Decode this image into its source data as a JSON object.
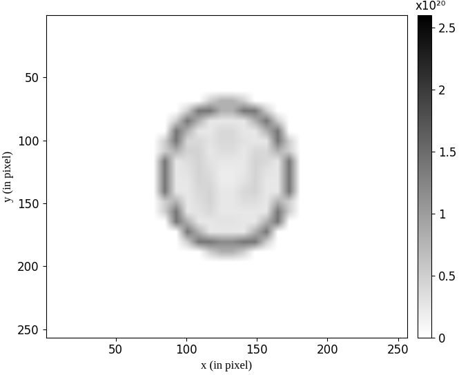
{
  "chart_data": {
    "type": "heatmap",
    "xlabel": "x (in pixel)",
    "ylabel": "y (in pixel)",
    "xlim": [
      0.5,
      256.5
    ],
    "ylim": [
      256.5,
      0.5
    ],
    "xticks": [
      50,
      100,
      150,
      200,
      250
    ],
    "yticks": [
      50,
      100,
      150,
      200,
      250
    ],
    "colorbar_range": [
      0,
      2.6
    ],
    "colorbar_ticks": [
      0,
      0.5,
      1,
      1.5,
      2,
      2.5
    ],
    "colorbar_label": "x10²⁰",
    "cells": [
      [
        0,
        0,
        0,
        0,
        0,
        0,
        0,
        0,
        0,
        0,
        0,
        0,
        0,
        0,
        0,
        0,
        0,
        0,
        0,
        0,
        0,
        0,
        0,
        0,
        0,
        0,
        0,
        0,
        0,
        0,
        0,
        0
      ],
      [
        0,
        0,
        0,
        0,
        0,
        0,
        0,
        0,
        0,
        0,
        0,
        0,
        0,
        0,
        0,
        0,
        0,
        0,
        0,
        0,
        0,
        0,
        0,
        0,
        0,
        0,
        0,
        0,
        0,
        0,
        0,
        0
      ],
      [
        0,
        0,
        0,
        0,
        0,
        0,
        0,
        0,
        0,
        0,
        0,
        0,
        0,
        0,
        0,
        0,
        0,
        0,
        0,
        0,
        0,
        0,
        0,
        0,
        0,
        0,
        0,
        0,
        0,
        0,
        0,
        0
      ],
      [
        0,
        0,
        0,
        0,
        0,
        0,
        0,
        0,
        0,
        0,
        0,
        0,
        0,
        0,
        0,
        0,
        0,
        0,
        0,
        0,
        0,
        0,
        0,
        0,
        0,
        0,
        0,
        0,
        0,
        0,
        0,
        0
      ],
      [
        0,
        0,
        0,
        0,
        0,
        0,
        0,
        0,
        0,
        0,
        0,
        0,
        0,
        0,
        0,
        0,
        0,
        0,
        0,
        0,
        0,
        0,
        0,
        0,
        0,
        0,
        0,
        0,
        0,
        0,
        0,
        0
      ],
      [
        0,
        0,
        0,
        0,
        0,
        0,
        0,
        0,
        0,
        0,
        0,
        0,
        0,
        0,
        0,
        0,
        0,
        0,
        0,
        0,
        0,
        0,
        0,
        0,
        0,
        0,
        0,
        0,
        0,
        0,
        0,
        0
      ],
      [
        0,
        0,
        0,
        0,
        0,
        0,
        0,
        0,
        0,
        0,
        0,
        0,
        0,
        0,
        0,
        0,
        0,
        0,
        0,
        0,
        0,
        0,
        0,
        0,
        0,
        0,
        0,
        0,
        0,
        0,
        0,
        0
      ],
      [
        0,
        0,
        0,
        0,
        0,
        0,
        0,
        0,
        0,
        0,
        0,
        0,
        0,
        0,
        0,
        0,
        0,
        0,
        0,
        0,
        0,
        0,
        0,
        0,
        0,
        0,
        0,
        0,
        0,
        0,
        0,
        0
      ],
      [
        0,
        0,
        0,
        0,
        0,
        0,
        0,
        0,
        0,
        0,
        0,
        0,
        0,
        0,
        0.5,
        0.8,
        0.8,
        0.5,
        0,
        0,
        0,
        0,
        0,
        0,
        0,
        0,
        0,
        0,
        0,
        0,
        0,
        0
      ],
      [
        0,
        0,
        0,
        0,
        0,
        0,
        0,
        0,
        0,
        0,
        0,
        0,
        0.5,
        1.4,
        1.4,
        0.8,
        0.8,
        1.4,
        1.4,
        0.5,
        0,
        0,
        0,
        0,
        0,
        0,
        0,
        0,
        0,
        0,
        0,
        0
      ],
      [
        0,
        0,
        0,
        0,
        0,
        0,
        0,
        0,
        0,
        0,
        0,
        0.5,
        1.4,
        0.8,
        0.25,
        0.25,
        0.25,
        0.25,
        0.8,
        1.4,
        0.5,
        0,
        0,
        0,
        0,
        0,
        0,
        0,
        0,
        0,
        0,
        0
      ],
      [
        0,
        0,
        0,
        0,
        0,
        0,
        0,
        0,
        0,
        0,
        0,
        1.4,
        0.8,
        0.25,
        0.25,
        0.4,
        0.4,
        0.25,
        0.25,
        0.8,
        1.4,
        0,
        0,
        0,
        0,
        0,
        0,
        0,
        0,
        0,
        0,
        0
      ],
      [
        0,
        0,
        0,
        0,
        0,
        0,
        0,
        0,
        0,
        0,
        0.5,
        1.4,
        0.4,
        0.4,
        0.3,
        0.4,
        0.4,
        0.3,
        0.25,
        0.25,
        1.4,
        0.5,
        0,
        0,
        0,
        0,
        0,
        0,
        0,
        0,
        0,
        0
      ],
      [
        0,
        0,
        0,
        0,
        0,
        0,
        0,
        0,
        0,
        0,
        0.5,
        0.8,
        0.45,
        0.45,
        0.25,
        0.35,
        0.35,
        0.25,
        0.4,
        0.4,
        0.8,
        0.5,
        0,
        0,
        0,
        0,
        0,
        0,
        0,
        0,
        0,
        0
      ],
      [
        0,
        0,
        0,
        0,
        0,
        0,
        0,
        0,
        0,
        0,
        1.4,
        0.25,
        0.35,
        0.45,
        0.3,
        0.25,
        0.25,
        0.25,
        0.45,
        0.4,
        0.25,
        1.4,
        0,
        0,
        0,
        0,
        0,
        0,
        0,
        0,
        0,
        0
      ],
      [
        0,
        0,
        0,
        0,
        0,
        0,
        0,
        0,
        0,
        0,
        1.4,
        0.25,
        0.3,
        0.45,
        0.35,
        0.2,
        0.2,
        0.25,
        0.45,
        0.3,
        0.25,
        1.4,
        0,
        0,
        0,
        0,
        0,
        0,
        0,
        0,
        0,
        0
      ],
      [
        0,
        0,
        0,
        0,
        0,
        0,
        0,
        0,
        0,
        0,
        1.4,
        0.25,
        0.25,
        0.45,
        0.4,
        0.2,
        0.2,
        0.3,
        0.45,
        0.25,
        0.25,
        1.4,
        0,
        0,
        0,
        0,
        0,
        0,
        0,
        0,
        0,
        0
      ],
      [
        0,
        0,
        0,
        0,
        0,
        0,
        0,
        0,
        0,
        0,
        1.4,
        0.25,
        0.25,
        0.4,
        0.45,
        0.25,
        0.25,
        0.4,
        0.45,
        0.25,
        0.25,
        1.4,
        0,
        0,
        0,
        0,
        0,
        0,
        0,
        0,
        0,
        0
      ],
      [
        0,
        0,
        0,
        0,
        0,
        0,
        0,
        0,
        0,
        0,
        0.5,
        0.8,
        0.25,
        0.35,
        0.45,
        0.25,
        0.25,
        0.35,
        0.35,
        0.25,
        0.8,
        0.5,
        0,
        0,
        0,
        0,
        0,
        0,
        0,
        0,
        0,
        0
      ],
      [
        0,
        0,
        0,
        0,
        0,
        0,
        0,
        0,
        0,
        0,
        0.5,
        1.4,
        0.25,
        0.3,
        0.4,
        0.25,
        0.25,
        0.25,
        0.25,
        0.25,
        1.4,
        0.5,
        0,
        0,
        0,
        0,
        0,
        0,
        0,
        0,
        0,
        0
      ],
      [
        0,
        0,
        0,
        0,
        0,
        0,
        0,
        0,
        0,
        0,
        0,
        1.4,
        0.8,
        0.25,
        0.25,
        0.3,
        0.3,
        0.25,
        0.25,
        0.8,
        1.4,
        0,
        0,
        0,
        0,
        0,
        0,
        0,
        0,
        0,
        0,
        0
      ],
      [
        0,
        0,
        0,
        0,
        0,
        0,
        0,
        0,
        0,
        0,
        0,
        0,
        1.4,
        0.8,
        0.25,
        0.25,
        0.25,
        0.25,
        0.8,
        1.4,
        0,
        0,
        0,
        0,
        0,
        0,
        0,
        0,
        0,
        0,
        0,
        0
      ],
      [
        0,
        0,
        0,
        0,
        0,
        0,
        0,
        0,
        0,
        0,
        0,
        0,
        0.5,
        1.4,
        1.4,
        1.2,
        1.2,
        1.4,
        1.4,
        0.5,
        0,
        0,
        0,
        0,
        0,
        0,
        0,
        0,
        0,
        0,
        0,
        0
      ],
      [
        0,
        0,
        0,
        0,
        0,
        0,
        0,
        0,
        0,
        0,
        0,
        0,
        0,
        0,
        0.5,
        0.8,
        0.8,
        0.5,
        0,
        0,
        0,
        0,
        0,
        0,
        0,
        0,
        0,
        0,
        0,
        0,
        0,
        0
      ],
      [
        0,
        0,
        0,
        0,
        0,
        0,
        0,
        0,
        0,
        0,
        0,
        0,
        0,
        0,
        0,
        0,
        0,
        0,
        0,
        0,
        0,
        0,
        0,
        0,
        0,
        0,
        0,
        0,
        0,
        0,
        0,
        0
      ],
      [
        0,
        0,
        0,
        0,
        0,
        0,
        0,
        0,
        0,
        0,
        0,
        0,
        0,
        0,
        0,
        0,
        0,
        0,
        0,
        0,
        0,
        0,
        0,
        0,
        0,
        0,
        0,
        0,
        0,
        0,
        0,
        0
      ],
      [
        0,
        0,
        0,
        0,
        0,
        0,
        0,
        0,
        0,
        0,
        0,
        0,
        0,
        0,
        0,
        0,
        0,
        0,
        0,
        0,
        0,
        0,
        0,
        0,
        0,
        0,
        0,
        0,
        0,
        0,
        0,
        0
      ],
      [
        0,
        0,
        0,
        0,
        0,
        0,
        0,
        0,
        0,
        0,
        0,
        0,
        0,
        0,
        0,
        0,
        0,
        0,
        0,
        0,
        0,
        0,
        0,
        0,
        0,
        0,
        0,
        0,
        0,
        0,
        0,
        0
      ],
      [
        0,
        0,
        0,
        0,
        0,
        0,
        0,
        0,
        0,
        0,
        0,
        0,
        0,
        0,
        0,
        0,
        0,
        0,
        0,
        0,
        0,
        0,
        0,
        0,
        0,
        0,
        0,
        0,
        0,
        0,
        0,
        0
      ],
      [
        0,
        0,
        0,
        0,
        0,
        0,
        0,
        0,
        0,
        0,
        0,
        0,
        0,
        0,
        0,
        0,
        0,
        0,
        0,
        0,
        0,
        0,
        0,
        0,
        0,
        0,
        0,
        0,
        0,
        0,
        0,
        0
      ],
      [
        0,
        0,
        0,
        0,
        0,
        0,
        0,
        0,
        0,
        0,
        0,
        0,
        0,
        0,
        0,
        0,
        0,
        0,
        0,
        0,
        0,
        0,
        0,
        0,
        0,
        0,
        0,
        0,
        0,
        0,
        0,
        0
      ],
      [
        0,
        0,
        0,
        0,
        0,
        0,
        0,
        0,
        0,
        0,
        0,
        0,
        0,
        0,
        0,
        0,
        0,
        0,
        0,
        0,
        0,
        0,
        0,
        0,
        0,
        0,
        0,
        0,
        0,
        0,
        0,
        0
      ]
    ]
  }
}
